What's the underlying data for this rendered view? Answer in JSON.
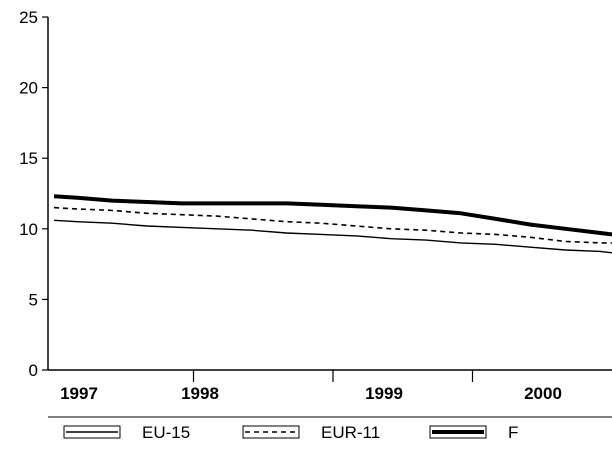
{
  "chart_data": {
    "type": "line",
    "title": "",
    "xlabel": "",
    "ylabel": "",
    "ylim": [
      0,
      25
    ],
    "yticks": [
      0,
      5,
      10,
      15,
      20,
      25
    ],
    "x_categories": [
      "1997",
      "1998",
      "1999",
      "2000"
    ],
    "x": [
      "1997-01",
      "1997-03",
      "1997-06",
      "1997-09",
      "1997-12",
      "1998-03",
      "1998-06",
      "1998-09",
      "1998-12",
      "1999-03",
      "1999-06",
      "1999-09",
      "1999-12",
      "2000-03",
      "2000-06",
      "2000-09",
      "2000-12",
      "2001-01"
    ],
    "series": [
      {
        "name": "EU-15",
        "style": "thin-solid",
        "color": "#000000",
        "values": [
          10.6,
          10.5,
          10.4,
          10.2,
          10.1,
          10.0,
          9.9,
          9.7,
          9.6,
          9.5,
          9.3,
          9.2,
          9.0,
          8.9,
          8.7,
          8.5,
          8.4,
          8.3
        ]
      },
      {
        "name": "EUR-11",
        "style": "dashed",
        "color": "#000000",
        "values": [
          11.5,
          11.4,
          11.3,
          11.1,
          11.0,
          10.9,
          10.7,
          10.5,
          10.4,
          10.2,
          10.0,
          9.9,
          9.7,
          9.6,
          9.4,
          9.1,
          9.0,
          9.0
        ]
      },
      {
        "name": "F",
        "style": "thick-solid",
        "color": "#000000",
        "values": [
          12.3,
          12.2,
          12.0,
          11.9,
          11.8,
          11.8,
          11.8,
          11.8,
          11.7,
          11.6,
          11.5,
          11.3,
          11.1,
          10.7,
          10.3,
          10.0,
          9.7,
          9.6
        ]
      }
    ],
    "grid": false,
    "legend_position": "bottom"
  }
}
